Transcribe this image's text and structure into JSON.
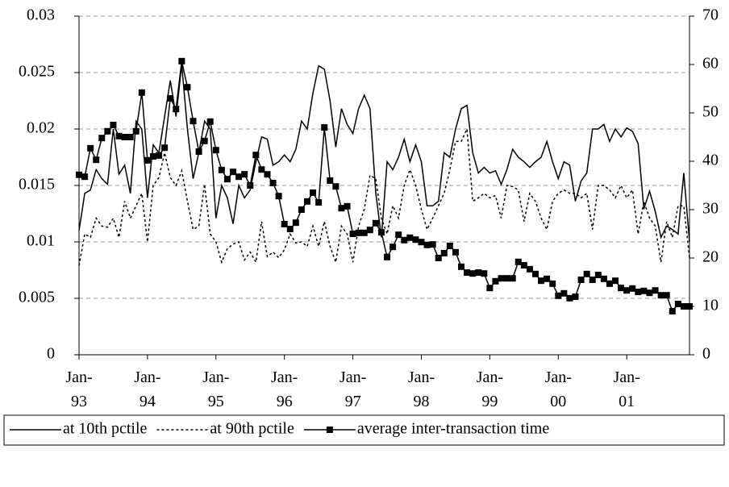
{
  "chart_data": {
    "type": "line",
    "categories": [
      "Jan-\n93",
      null,
      null,
      null,
      null,
      null,
      null,
      null,
      null,
      null,
      null,
      null,
      "Jan-\n94",
      null,
      null,
      null,
      null,
      null,
      null,
      null,
      null,
      null,
      null,
      null,
      "Jan-\n95",
      null,
      null,
      null,
      null,
      null,
      null,
      null,
      null,
      null,
      null,
      null,
      "Jan-\n96",
      null,
      null,
      null,
      null,
      null,
      null,
      null,
      null,
      null,
      null,
      null,
      "Jan-\n97",
      null,
      null,
      null,
      null,
      null,
      null,
      null,
      null,
      null,
      null,
      null,
      "Jan-\n98",
      null,
      null,
      null,
      null,
      null,
      null,
      null,
      null,
      null,
      null,
      null,
      "Jan-\n99",
      null,
      null,
      null,
      null,
      null,
      null,
      null,
      null,
      null,
      null,
      null,
      "Jan-\n00",
      null,
      null,
      null,
      null,
      null,
      null,
      null,
      null,
      null,
      null,
      null,
      "Jan-\n01",
      null,
      null,
      null,
      null,
      null,
      null,
      null,
      null,
      null,
      null,
      null
    ],
    "series": [
      {
        "name": "at 10th pctile",
        "color": "#000000",
        "line_style": "solid",
        "values": [
          0.011,
          0.0143,
          0.0146,
          0.0164,
          0.0156,
          0.0151,
          0.02,
          0.016,
          0.0168,
          0.0143,
          0.0207,
          0.02,
          0.0139,
          0.0186,
          0.0179,
          0.0211,
          0.0243,
          0.0211,
          0.0257,
          0.02,
          0.0156,
          0.0179,
          0.0207,
          0.02,
          0.0121,
          0.015,
          0.0139,
          0.0116,
          0.015,
          0.0139,
          0.0146,
          0.0171,
          0.0193,
          0.0191,
          0.0168,
          0.0171,
          0.0177,
          0.0171,
          0.0182,
          0.0207,
          0.02,
          0.0232,
          0.0256,
          0.0253,
          0.0225,
          0.0184,
          0.0218,
          0.0204,
          0.0196,
          0.0218,
          0.023,
          0.0218,
          0.0144,
          0.0104,
          0.0171,
          0.0164,
          0.0175,
          0.0191,
          0.0171,
          0.0186,
          0.0171,
          0.0132,
          0.0132,
          0.0136,
          0.0179,
          0.0175,
          0.02,
          0.0218,
          0.0221,
          0.0179,
          0.0161,
          0.0166,
          0.0161,
          0.0163,
          0.0151,
          0.0164,
          0.0182,
          0.0175,
          0.0171,
          0.0166,
          0.0171,
          0.0175,
          0.0189,
          0.0171,
          0.0156,
          0.0171,
          0.0168,
          0.0136,
          0.0154,
          0.0161,
          0.02,
          0.02,
          0.0204,
          0.0189,
          0.02,
          0.0193,
          0.0201,
          0.0198,
          0.0187,
          0.0129,
          0.0145,
          0.0127,
          0.0104,
          0.0114,
          0.0111,
          0.0107,
          0.0161,
          0.01
        ]
      },
      {
        "name": "at 90th pctile",
        "color": "#000000",
        "line_style": "dotted",
        "values": [
          0.0079,
          0.0107,
          0.0104,
          0.0121,
          0.0114,
          0.0113,
          0.0121,
          0.0104,
          0.0136,
          0.0121,
          0.0132,
          0.0143,
          0.01,
          0.015,
          0.0157,
          0.0179,
          0.0157,
          0.015,
          0.0163,
          0.0136,
          0.0111,
          0.0114,
          0.0151,
          0.0107,
          0.01,
          0.0082,
          0.0094,
          0.0098,
          0.01,
          0.0084,
          0.0091,
          0.0082,
          0.0118,
          0.0087,
          0.0091,
          0.0086,
          0.0093,
          0.0107,
          0.0099,
          0.01,
          0.0096,
          0.0114,
          0.0096,
          0.0118,
          0.0096,
          0.0082,
          0.0114,
          0.0107,
          0.0082,
          0.0114,
          0.0129,
          0.0159,
          0.0156,
          0.0121,
          0.0107,
          0.0132,
          0.0121,
          0.015,
          0.0164,
          0.015,
          0.0129,
          0.0111,
          0.0121,
          0.0132,
          0.0143,
          0.0164,
          0.0189,
          0.0189,
          0.02,
          0.0136,
          0.0139,
          0.0143,
          0.0139,
          0.0141,
          0.0121,
          0.015,
          0.0149,
          0.0146,
          0.0118,
          0.0143,
          0.0136,
          0.0121,
          0.0111,
          0.0136,
          0.0143,
          0.0146,
          0.0143,
          0.0143,
          0.0139,
          0.0143,
          0.0111,
          0.015,
          0.015,
          0.0146,
          0.0139,
          0.015,
          0.0139,
          0.0146,
          0.0107,
          0.0136,
          0.0121,
          0.0114,
          0.0082,
          0.0118,
          0.0104,
          0.0132,
          0.0132,
          0.0086
        ]
      },
      {
        "name": "average inter-transaction time",
        "color": "#000000",
        "line_style": "solid",
        "marker": "square",
        "axis": "y2",
        "values": [
          37.2,
          36.8,
          42.7,
          40.3,
          44.8,
          46.2,
          47.5,
          45.2,
          45,
          45,
          46.2,
          54.2,
          40.2,
          41,
          41.2,
          42.8,
          53,
          50.8,
          60.7,
          55.3,
          48.3,
          42,
          44.2,
          48.2,
          42.3,
          38.2,
          36.3,
          37.8,
          36.8,
          37.3,
          35,
          41.3,
          38.3,
          37.3,
          35.5,
          32.8,
          27,
          26,
          27.3,
          30,
          31.7,
          33.5,
          31.5,
          47,
          36,
          34.8,
          30.3,
          30.7,
          25,
          25.2,
          25.2,
          25.8,
          27.2,
          25.3,
          20.2,
          22.3,
          24.8,
          23.7,
          24.2,
          23.8,
          23.3,
          22.7,
          22.8,
          20,
          21,
          22.5,
          21.2,
          18.2,
          17,
          16.8,
          17,
          16.8,
          13.8,
          15.2,
          15.8,
          15.8,
          15.8,
          19.2,
          18.5,
          17.7,
          16.7,
          15.3,
          15.7,
          14.7,
          12.2,
          12.7,
          11.7,
          12,
          15.5,
          16.7,
          15.5,
          16.5,
          15.7,
          14.7,
          15.3,
          13.8,
          13.3,
          13.7,
          13,
          13.2,
          12.8,
          13.3,
          12.3,
          12.3,
          9,
          10.5,
          10,
          10
        ]
      }
    ],
    "ylim": [
      0,
      0.03
    ],
    "yticks": [
      0,
      0.005,
      0.01,
      0.015,
      0.02,
      0.025,
      0.03
    ],
    "y2lim": [
      0,
      70
    ],
    "y2ticks": [
      0,
      10,
      20,
      30,
      40,
      50,
      60,
      70
    ],
    "grid": true,
    "legend": "bottom"
  }
}
